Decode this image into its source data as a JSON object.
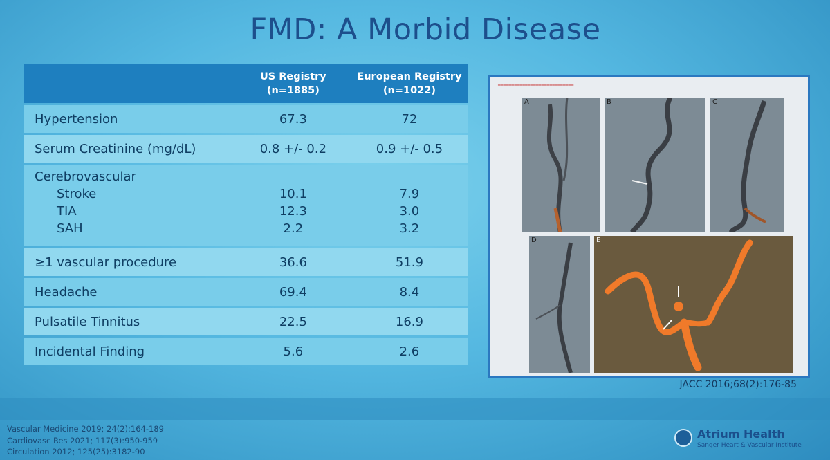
{
  "title": "FMD: A Morbid Disease",
  "table": {
    "headers": {
      "us": [
        "US Registry",
        "(n=1885)"
      ],
      "eu": [
        "European Registry",
        "(n=1022)"
      ]
    },
    "rows": {
      "hypertension": {
        "label": "Hypertension",
        "us": "67.3",
        "eu": "72"
      },
      "creatinine": {
        "label": "Serum Creatinine (mg/dL)",
        "us": "0.8 +/- 0.2",
        "eu": "0.9 +/- 0.5"
      },
      "cerebrovascular": {
        "label": "Cerebrovascular",
        "subs": [
          {
            "label": "Stroke",
            "us": "10.1",
            "eu": "7.9"
          },
          {
            "label": "TIA",
            "us": "12.3",
            "eu": "3.0"
          },
          {
            "label": "SAH",
            "us": "2.2",
            "eu": "3.2"
          }
        ]
      },
      "procedure": {
        "label": "≥1 vascular procedure",
        "us": "36.6",
        "eu": "51.9"
      },
      "headache": {
        "label": "Headache",
        "us": "69.4",
        "eu": "8.4"
      },
      "tinnitus": {
        "label": "Pulsatile Tinnitus",
        "us": "22.5",
        "eu": "16.9"
      },
      "incidental": {
        "label": "Incidental Finding",
        "us": "5.6",
        "eu": "2.6"
      }
    }
  },
  "figure": {
    "panels": [
      "A",
      "B",
      "C",
      "D",
      "E"
    ],
    "citation": "JACC 2016;68(2):176-85"
  },
  "references": [
    "Vascular Medicine 2019; 24(2):164-189",
    "Cardiovasc Res 2021; 117(3):950-959",
    "Circulation 2012; 125(25):3182-90"
  ],
  "logo": {
    "name": "Atrium Health",
    "subtitle": "Sanger Heart & Vascular Institute"
  },
  "colors": {
    "header": "#1e7fbf",
    "row": "#79cdea",
    "title": "#1d4f8c",
    "figure_border": "#2b78c0",
    "vessel": "#f07a2a"
  }
}
